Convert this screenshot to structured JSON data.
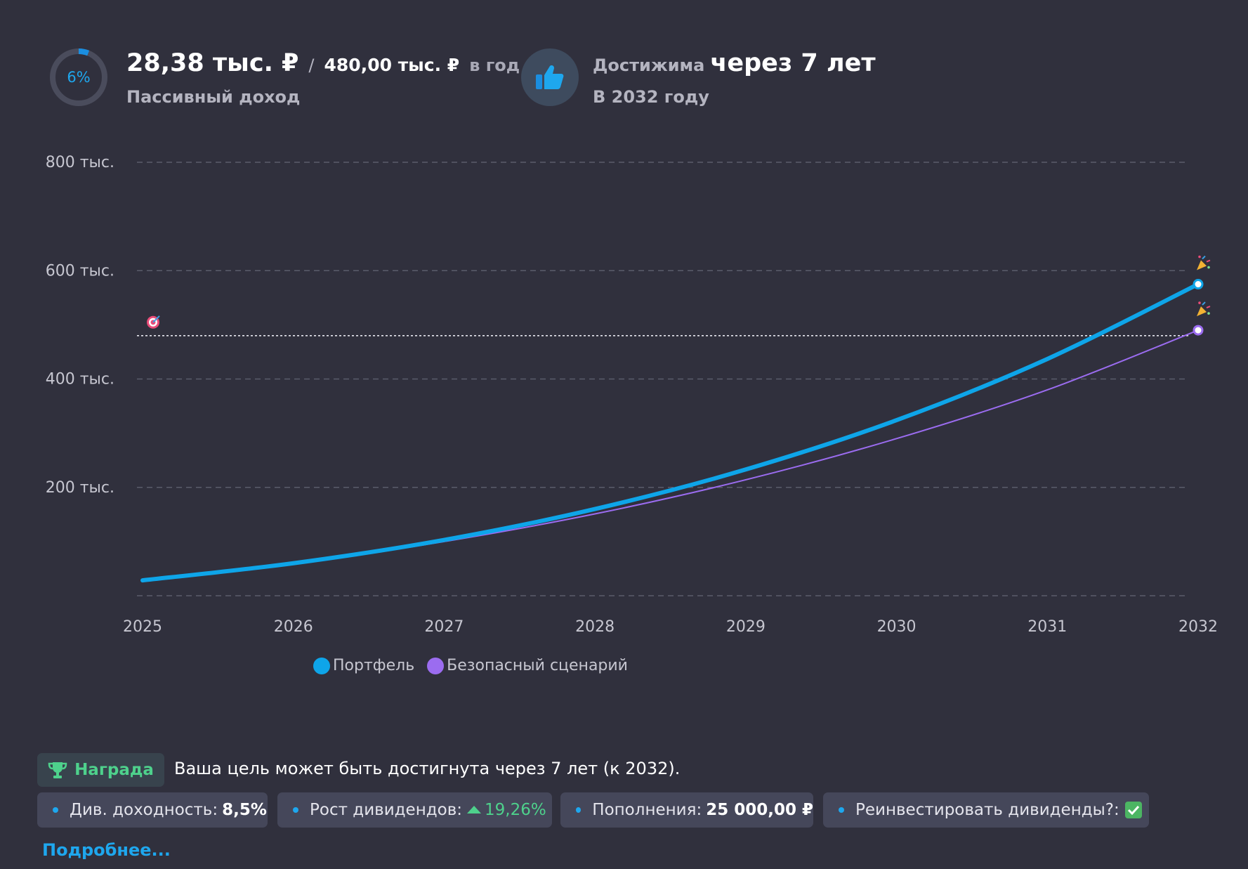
{
  "header": {
    "progress_percent_label": "6%",
    "progress_fraction": 0.06,
    "income_current": "28,38 тыс. ₽",
    "separator": "/",
    "income_target": "480,00 тыс. ₽",
    "income_period": "в год",
    "income_caption": "Пассивный доход",
    "reach_prefix": "Достижима",
    "reach_main": "через 7 лет",
    "reach_year": "В 2032 году"
  },
  "chart_data": {
    "type": "line",
    "x": [
      2025,
      2026,
      2027,
      2028,
      2029,
      2030,
      2031,
      2032
    ],
    "x_tick_labels": [
      "2025",
      "2026",
      "2027",
      "2028",
      "2029",
      "2030",
      "2031",
      "2032"
    ],
    "y_ticks": [
      0,
      200000,
      400000,
      600000,
      800000
    ],
    "y_tick_labels": [
      "",
      "200 тыс.",
      "400 тыс.",
      "600 тыс.",
      "800 тыс."
    ],
    "ylim": [
      0,
      800000
    ],
    "grid": true,
    "legend_position": "bottom",
    "goal_value": 480000,
    "goal_icon": "target-icon",
    "end_icon": "party-popper-icon",
    "series": [
      {
        "name": "Портфель",
        "color": "#0ea5e9",
        "values": [
          28380,
          60000,
          103000,
          160000,
          233000,
          324000,
          437000,
          575000
        ]
      },
      {
        "name": "Безопасный сценарий",
        "color": "#9b6cf0",
        "values": [
          28380,
          59000,
          100000,
          151000,
          214000,
          290000,
          380000,
          490000
        ]
      }
    ]
  },
  "award": {
    "icon": "trophy-icon",
    "badge_label": "Награда",
    "text": "Ваша цель может быть достигнута через 7 лет (к 2032)."
  },
  "chips": [
    {
      "label": "Див. доходность:",
      "value": "8,5%"
    },
    {
      "label": "Рост дивидендов:",
      "value": "19,26%",
      "icon": "arrow-up-icon"
    },
    {
      "label": "Пополнения:",
      "value": "25 000,00 ₽"
    },
    {
      "label": "Реинвестировать дивиденды?:",
      "icon": "checkbox-checked-icon"
    }
  ],
  "more_link": "Подробнее...",
  "colors": {
    "background": "#30303d",
    "accent": "#1ea7ee",
    "success": "#4ed18c",
    "chip_bg": "#45475a"
  }
}
